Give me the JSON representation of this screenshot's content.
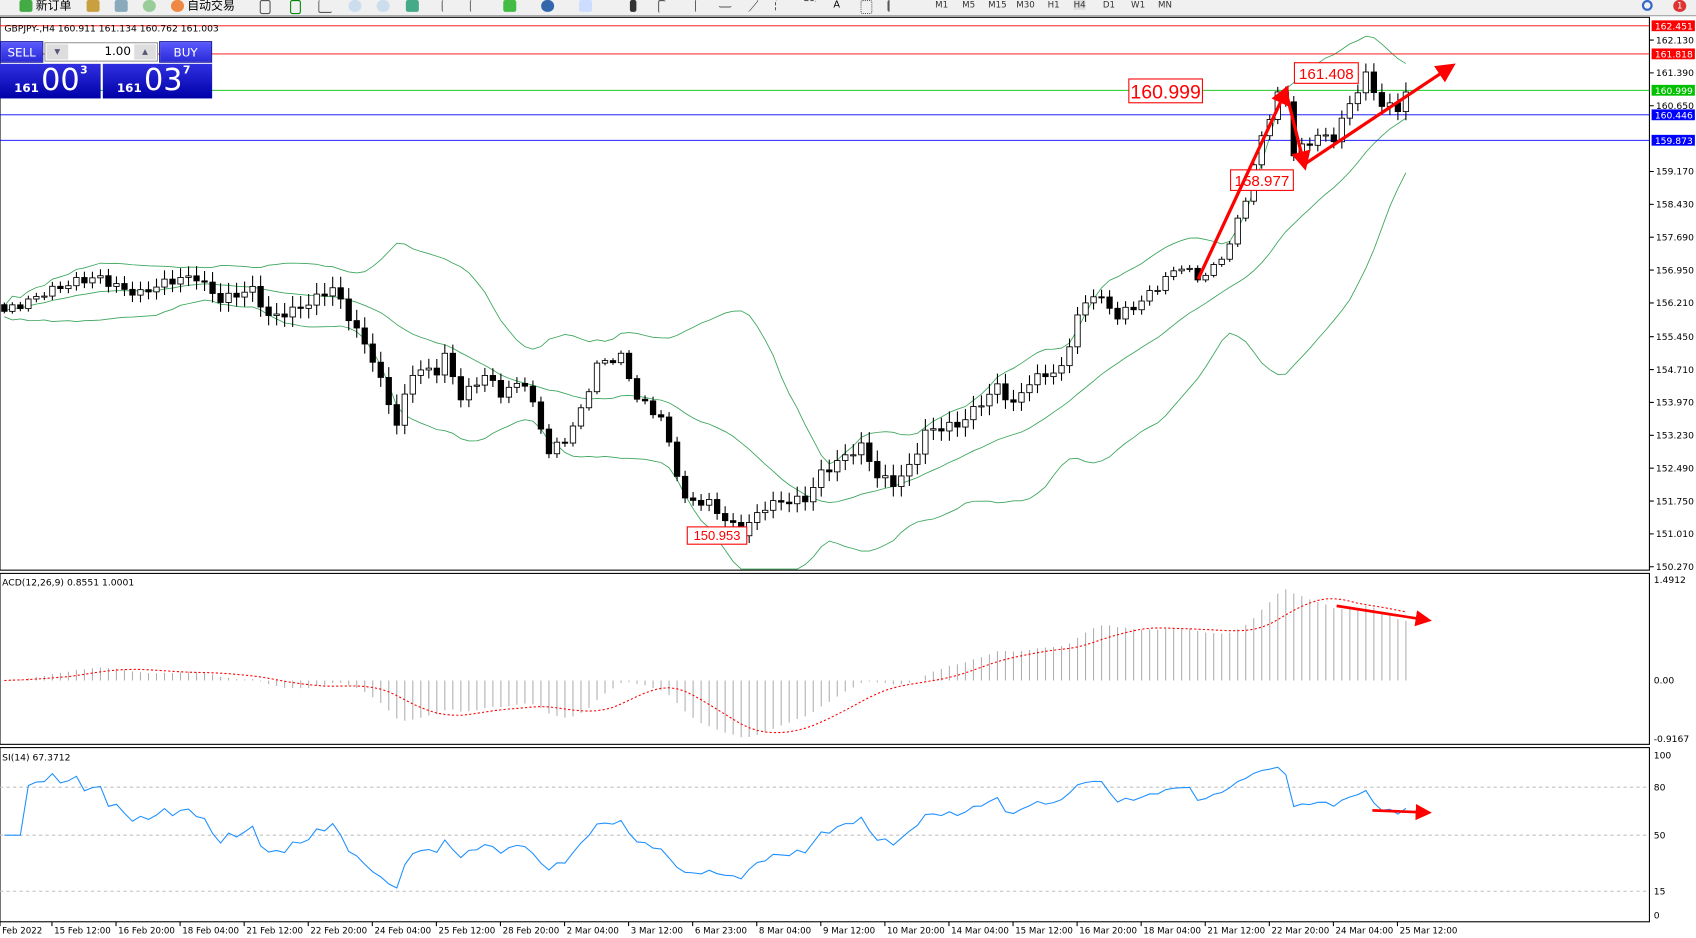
{
  "toolbar": {
    "new_order": "新订单",
    "auto_trading": "自动交易",
    "timeframes": [
      "M1",
      "M5",
      "M15",
      "M30",
      "H1",
      "H4",
      "D1",
      "W1",
      "MN"
    ],
    "active_timeframe": "H4",
    "notification_count": "1"
  },
  "chart_header": "GBPJPY-,H4  160.911 161.134 160.762 161.003",
  "trade_panel": {
    "sell_label": "SELL",
    "buy_label": "BUY",
    "lot": "1.00",
    "sell_price": {
      "small": "161",
      "big": "00",
      "tiny": "3"
    },
    "buy_price": {
      "small": "161",
      "big": "03",
      "tiny": "7"
    }
  },
  "chart_data": [
    {
      "type": "candlestick",
      "symbol": "GBPJPY-",
      "timeframe": "H4",
      "ylim": [
        150.27,
        162.451
      ],
      "y_ticks": [
        "162.130",
        "161.390",
        "160.650",
        "159.170",
        "158.430",
        "157.690",
        "156.950",
        "156.210",
        "155.450",
        "154.710",
        "153.970",
        "153.230",
        "152.490",
        "151.750",
        "151.010",
        "150.270"
      ],
      "x_ticks": [
        "Feb 2022",
        "15 Feb 12:00",
        "16 Feb 20:00",
        "18 Feb 04:00",
        "21 Feb 12:00",
        "22 Feb 20:00",
        "24 Feb 04:00",
        "25 Feb 12:00",
        "28 Feb 20:00",
        "2 Mar 04:00",
        "3 Mar 12:00",
        "6 Mar 23:00",
        "8 Mar 04:00",
        "9 Mar 12:00",
        "10 Mar 20:00",
        "14 Mar 04:00",
        "15 Mar 12:00",
        "16 Mar 20:00",
        "18 Mar 04:00",
        "21 Mar 12:00",
        "22 Mar 20:00",
        "24 Mar 04:00",
        "25 Mar 12:00"
      ],
      "close_waypoints_bar_price": [
        [
          0,
          155.97
        ],
        [
          5,
          156.5
        ],
        [
          12,
          156.75
        ],
        [
          17,
          156.45
        ],
        [
          24,
          156.82
        ],
        [
          27,
          156.33
        ],
        [
          31,
          156.45
        ],
        [
          33,
          155.85
        ],
        [
          36,
          156.09
        ],
        [
          41,
          156.5
        ],
        [
          43,
          155.85
        ],
        [
          46,
          154.99
        ],
        [
          49,
          153.53
        ],
        [
          51,
          154.63
        ],
        [
          54,
          154.63
        ],
        [
          55,
          154.99
        ],
        [
          57,
          154.14
        ],
        [
          60,
          154.63
        ],
        [
          62,
          154.14
        ],
        [
          65,
          154.38
        ],
        [
          68,
          152.92
        ],
        [
          70,
          153.17
        ],
        [
          72,
          153.77
        ],
        [
          74,
          154.75
        ],
        [
          77,
          154.99
        ],
        [
          79,
          154.14
        ],
        [
          82,
          153.65
        ],
        [
          85,
          151.7
        ],
        [
          88,
          151.7
        ],
        [
          92,
          151.09
        ],
        [
          95,
          151.58
        ],
        [
          100,
          151.83
        ],
        [
          102,
          152.43
        ],
        [
          107,
          152.92
        ],
        [
          109,
          152.31
        ],
        [
          111,
          152.19
        ],
        [
          113,
          152.56
        ],
        [
          115,
          153.29
        ],
        [
          119,
          153.41
        ],
        [
          122,
          154.02
        ],
        [
          124,
          154.38
        ],
        [
          126,
          153.9
        ],
        [
          128,
          154.38
        ],
        [
          132,
          154.75
        ],
        [
          134,
          155.97
        ],
        [
          136,
          156.45
        ],
        [
          139,
          155.85
        ],
        [
          141,
          156.09
        ],
        [
          145,
          156.82
        ],
        [
          147,
          157.06
        ],
        [
          149,
          156.7
        ],
        [
          151,
          156.94
        ],
        [
          153,
          157.55
        ],
        [
          155,
          158.65
        ],
        [
          157,
          159.99
        ],
        [
          159,
          160.84
        ],
        [
          160,
          160.72
        ],
        [
          161,
          159.5
        ],
        [
          164,
          159.99
        ],
        [
          166,
          159.99
        ],
        [
          168,
          160.72
        ],
        [
          170,
          161.28
        ],
        [
          172,
          160.6
        ],
        [
          174,
          160.6
        ],
        [
          175,
          160.96
        ]
      ],
      "indicators": [
        "Bollinger Bands"
      ],
      "horizontal_lines": [
        {
          "price": 162.451,
          "label": "162.451",
          "color": "#ff0000"
        },
        {
          "price": 161.818,
          "label": "161.818",
          "color": "#ff0000"
        },
        {
          "price": 160.999,
          "label": "160.999",
          "color": "#00c000"
        },
        {
          "price": 160.446,
          "label": "160.446",
          "color": "#0000ff"
        },
        {
          "price": 159.873,
          "label": "159.873",
          "color": "#0000ff"
        }
      ],
      "annotations": [
        "160.999",
        "161.408",
        "158.977",
        "150.953"
      ]
    },
    {
      "type": "bar",
      "title": "ACD(12,26,9) 0.8551 1.0001",
      "ylim": [
        -0.9167,
        1.4912
      ],
      "y_ticks": [
        "1.4912",
        "0.00",
        "-0.9167"
      ]
    },
    {
      "type": "line",
      "title": "SI(14) 67.3712",
      "ylim": [
        0,
        100
      ],
      "y_ticks": [
        "100",
        "80",
        "50",
        "15",
        "0"
      ],
      "levels": [
        80,
        50,
        15
      ],
      "color": "#1e90ff"
    }
  ],
  "colors": {
    "bull": "#ffffff",
    "bear": "#000000",
    "bands": "#3aa55a",
    "annotation": "#ff0000",
    "macd_hist": "#b0b0b0",
    "macd_signal": "#ff0000",
    "rsi": "#1e90ff"
  }
}
